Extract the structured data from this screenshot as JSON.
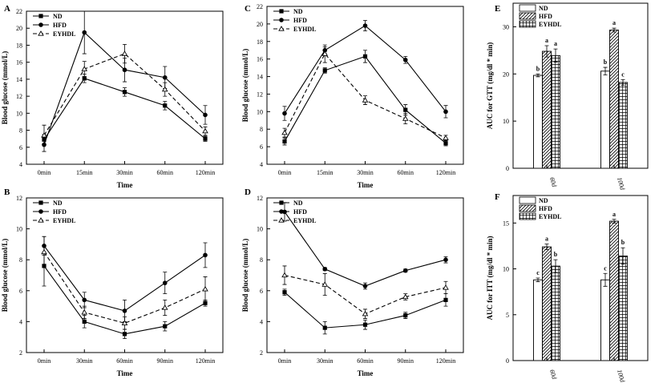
{
  "chart_data": [
    {
      "panel": "A",
      "type": "line",
      "categories": [
        "0min",
        "15min",
        "30min",
        "60min",
        "120min"
      ],
      "xlabel": "Time",
      "ylabel": "Blood glucose (mmol/L)",
      "ylim": [
        4,
        22
      ],
      "yticks": [
        4,
        6,
        8,
        10,
        12,
        14,
        16,
        18,
        20,
        22
      ],
      "series": [
        {
          "name": "ND",
          "marker": "square",
          "dash": "solid",
          "values": [
            6.9,
            14.1,
            12.5,
            10.9,
            7.0
          ],
          "errors": [
            0.6,
            0.5,
            0.5,
            0.5,
            0.3
          ]
        },
        {
          "name": "HFD",
          "marker": "circle",
          "dash": "solid",
          "values": [
            6.3,
            19.5,
            15.1,
            14.2,
            9.8
          ],
          "errors": [
            0.8,
            2.5,
            1.4,
            1.3,
            1.1
          ]
        },
        {
          "name": "EYHDL",
          "marker": "triangle",
          "dash": "dashed",
          "values": [
            7.4,
            15.2,
            17.0,
            12.8,
            7.9
          ],
          "errors": [
            1.2,
            0.9,
            1.1,
            0.8,
            0.5
          ]
        }
      ]
    },
    {
      "panel": "B",
      "type": "line",
      "categories": [
        "0min",
        "30min",
        "60min",
        "90min",
        "120min"
      ],
      "xlabel": "Time",
      "ylabel": "Blood glucose (mmol/L)",
      "ylim": [
        2,
        12
      ],
      "yticks": [
        2,
        4,
        6,
        8,
        10,
        12
      ],
      "series": [
        {
          "name": "ND",
          "marker": "square",
          "dash": "solid",
          "values": [
            7.6,
            4.0,
            3.2,
            3.7,
            5.2
          ],
          "errors": [
            1.3,
            0.4,
            0.3,
            0.3,
            0.2
          ]
        },
        {
          "name": "HFD",
          "marker": "circle",
          "dash": "solid",
          "values": [
            8.9,
            5.4,
            4.7,
            6.5,
            8.3
          ],
          "errors": [
            0.6,
            0.5,
            0.7,
            0.7,
            0.8
          ]
        },
        {
          "name": "EYHDL",
          "marker": "triangle",
          "dash": "dashed",
          "values": [
            8.5,
            4.6,
            3.9,
            4.9,
            6.1
          ],
          "errors": [
            1.0,
            0.4,
            0.4,
            0.5,
            0.8
          ]
        }
      ]
    },
    {
      "panel": "C",
      "type": "line",
      "categories": [
        "0min",
        "15min",
        "30min",
        "60min",
        "120min"
      ],
      "xlabel": "Time",
      "ylabel": "Blood glucose (mmol/L)",
      "ylim": [
        4,
        22
      ],
      "yticks": [
        4,
        6,
        8,
        10,
        12,
        14,
        16,
        18,
        20,
        22
      ],
      "series": [
        {
          "name": "ND",
          "marker": "square",
          "dash": "solid",
          "values": [
            6.6,
            14.7,
            16.3,
            10.2,
            6.4
          ],
          "errors": [
            0.4,
            0.3,
            0.7,
            0.6,
            0.3
          ]
        },
        {
          "name": "HFD",
          "marker": "circle",
          "dash": "solid",
          "values": [
            9.8,
            17.0,
            19.8,
            15.9,
            10.0
          ],
          "errors": [
            0.8,
            0.4,
            0.6,
            0.4,
            0.7
          ]
        },
        {
          "name": "EYHDL",
          "marker": "triangle",
          "dash": "dashed",
          "values": [
            7.6,
            16.6,
            11.3,
            9.2,
            7.0
          ],
          "errors": [
            0.5,
            1.0,
            0.5,
            0.6,
            0.3
          ]
        }
      ]
    },
    {
      "panel": "D",
      "type": "line",
      "categories": [
        "0min",
        "30min",
        "60min",
        "90min",
        "120min"
      ],
      "xlabel": "Time",
      "ylabel": "Blood glucose (mmol/L)",
      "ylim": [
        2,
        12
      ],
      "yticks": [
        2,
        4,
        6,
        8,
        10,
        12
      ],
      "series": [
        {
          "name": "ND",
          "marker": "square",
          "dash": "solid",
          "values": [
            5.9,
            3.6,
            3.8,
            4.4,
            5.4
          ],
          "errors": [
            0.2,
            0.4,
            0.3,
            0.2,
            0.4
          ]
        },
        {
          "name": "HFD",
          "marker": "circle",
          "dash": "solid",
          "values": [
            11.1,
            7.4,
            6.3,
            7.3,
            8.0
          ],
          "errors": [
            0.6,
            0.1,
            0.2,
            0.1,
            0.2
          ]
        },
        {
          "name": "EYHDL",
          "marker": "triangle",
          "dash": "dashed",
          "values": [
            7.0,
            6.4,
            4.5,
            5.6,
            6.2
          ],
          "errors": [
            0.6,
            0.7,
            0.3,
            0.2,
            0.4
          ]
        }
      ]
    },
    {
      "panel": "E",
      "type": "bar",
      "categories": [
        "60d",
        "100d"
      ],
      "ylabel": "AUC for GTT (mg/dl * min)",
      "ylim": [
        0,
        35
      ],
      "yticks": [
        0,
        10,
        20,
        30
      ],
      "series": [
        {
          "name": "ND",
          "pattern": "empty",
          "values": [
            19.7,
            20.6
          ],
          "errors": [
            0.3,
            0.8
          ],
          "labels": [
            "b",
            "b"
          ]
        },
        {
          "name": "HFD",
          "pattern": "diagonal",
          "values": [
            24.8,
            29.3
          ],
          "errors": [
            1.2,
            0.4
          ],
          "labels": [
            "a",
            "a"
          ]
        },
        {
          "name": "EYHDL",
          "pattern": "grid",
          "values": [
            23.9,
            18.2
          ],
          "errors": [
            1.4,
            0.6
          ],
          "labels": [
            "a",
            "c"
          ]
        }
      ]
    },
    {
      "panel": "F",
      "type": "bar",
      "categories": [
        "60d",
        "100d"
      ],
      "ylabel": "AUC for ITT (mg/dl * min)",
      "ylim": [
        0,
        18
      ],
      "yticks": [
        0,
        5,
        10,
        15
      ],
      "series": [
        {
          "name": "ND",
          "pattern": "empty",
          "values": [
            8.8,
            8.8
          ],
          "errors": [
            0.2,
            0.7
          ],
          "labels": [
            "c",
            "c"
          ]
        },
        {
          "name": "HFD",
          "pattern": "diagonal",
          "values": [
            12.4,
            15.2
          ],
          "errors": [
            0.3,
            0.2
          ],
          "labels": [
            "a",
            "a"
          ]
        },
        {
          "name": "EYHDL",
          "pattern": "grid",
          "values": [
            10.3,
            11.4
          ],
          "errors": [
            0.7,
            0.9
          ],
          "labels": [
            "b",
            "b"
          ]
        }
      ]
    }
  ]
}
